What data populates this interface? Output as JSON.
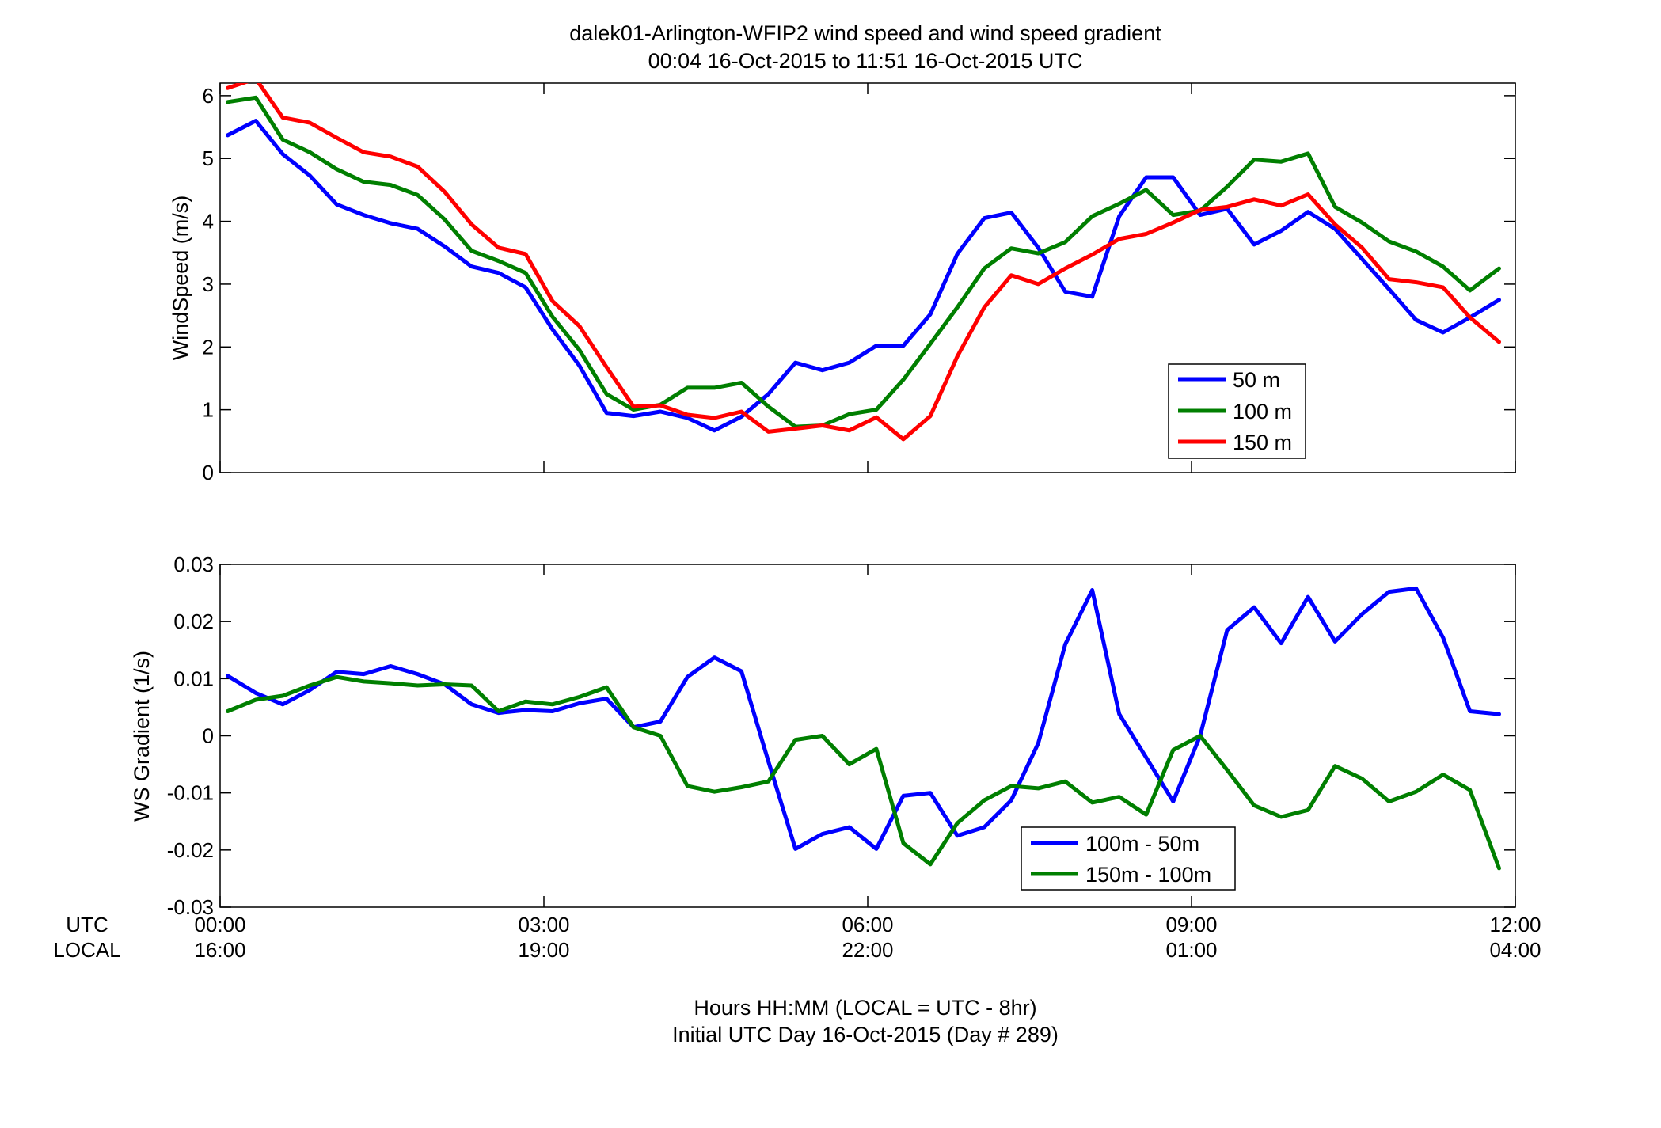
{
  "title": {
    "line1": "dalek01-Arlington-WFIP2  wind speed and wind speed gradient",
    "line2": "00:04 16-Oct-2015 to 11:51 16-Oct-2015  UTC"
  },
  "xaxis": {
    "row_labels": [
      "UTC",
      "LOCAL"
    ],
    "ticks_utc": [
      "00:00",
      "03:00",
      "06:00",
      "09:00",
      "12:00"
    ],
    "ticks_local": [
      "16:00",
      "19:00",
      "22:00",
      "01:00",
      "04:00"
    ],
    "tick_hours": [
      0,
      3,
      6,
      9,
      12
    ],
    "xlabel_line1": "Hours HH:MM  (LOCAL = UTC - 8hr)",
    "xlabel_line2": "Initial UTC Day 16-Oct-2015 (Day # 289)",
    "xlim": [
      0,
      12
    ]
  },
  "chart_data": [
    {
      "type": "line",
      "ylabel": "WindSpeed (m/s)",
      "ylim": [
        0,
        6.2
      ],
      "yticks": [
        0,
        1,
        2,
        3,
        4,
        5,
        6
      ],
      "ytick_labels": [
        "0",
        "1",
        "2",
        "3",
        "4",
        "5",
        "6"
      ],
      "grid": false,
      "legend_position": "lower-right",
      "x": [
        0.07,
        0.33,
        0.58,
        0.83,
        1.08,
        1.33,
        1.58,
        1.83,
        2.08,
        2.33,
        2.58,
        2.83,
        3.08,
        3.33,
        3.58,
        3.83,
        4.08,
        4.33,
        4.58,
        4.83,
        5.08,
        5.33,
        5.58,
        5.83,
        6.08,
        6.33,
        6.58,
        6.83,
        7.08,
        7.33,
        7.58,
        7.83,
        8.08,
        8.33,
        8.58,
        8.83,
        9.08,
        9.33,
        9.58,
        9.83,
        10.08,
        10.33,
        10.58,
        10.83,
        11.08,
        11.33,
        11.58,
        11.85
      ],
      "series": [
        {
          "name": "50 m",
          "color": "#0000ff",
          "values": [
            5.37,
            5.6,
            5.07,
            4.73,
            4.27,
            4.1,
            3.97,
            3.88,
            3.6,
            3.28,
            3.18,
            2.95,
            2.28,
            1.7,
            0.95,
            0.9,
            0.97,
            0.87,
            0.67,
            0.89,
            1.25,
            1.75,
            1.63,
            1.75,
            2.02,
            2.02,
            2.52,
            3.48,
            4.05,
            4.14,
            3.58,
            2.88,
            2.8,
            4.08,
            4.7,
            4.7,
            4.1,
            4.2,
            3.63,
            3.85,
            4.15,
            3.88,
            3.4,
            2.92,
            2.43,
            2.23,
            2.47,
            2.75
          ]
        },
        {
          "name": "100 m",
          "color": "#007f00",
          "values": [
            5.9,
            5.97,
            5.3,
            5.1,
            4.83,
            4.63,
            4.58,
            4.42,
            4.03,
            3.53,
            3.37,
            3.18,
            2.48,
            1.95,
            1.25,
            1.0,
            1.08,
            1.35,
            1.35,
            1.43,
            1.05,
            0.73,
            0.75,
            0.93,
            1.0,
            1.48,
            2.05,
            2.63,
            3.25,
            3.57,
            3.49,
            3.67,
            4.08,
            4.28,
            4.5,
            4.1,
            4.17,
            4.55,
            4.98,
            4.95,
            5.08,
            4.23,
            3.98,
            3.68,
            3.52,
            3.28,
            2.9,
            3.25
          ]
        },
        {
          "name": "150 m",
          "color": "#ff0000",
          "values": [
            6.12,
            6.27,
            5.65,
            5.57,
            5.33,
            5.1,
            5.03,
            4.87,
            4.47,
            3.95,
            3.58,
            3.48,
            2.73,
            2.33,
            1.68,
            1.05,
            1.07,
            0.92,
            0.87,
            0.97,
            0.65,
            0.7,
            0.75,
            0.67,
            0.88,
            0.53,
            0.9,
            1.85,
            2.63,
            3.14,
            3.0,
            3.25,
            3.47,
            3.72,
            3.8,
            3.98,
            4.18,
            4.23,
            4.35,
            4.25,
            4.43,
            3.95,
            3.58,
            3.08,
            3.03,
            2.95,
            2.47,
            2.08
          ]
        }
      ]
    },
    {
      "type": "line",
      "ylabel": "WS Gradient (1/s)",
      "ylim": [
        -0.03,
        0.03
      ],
      "yticks": [
        -0.03,
        -0.02,
        -0.01,
        0,
        0.01,
        0.02,
        0.03
      ],
      "ytick_labels": [
        "-0.03",
        "-0.02",
        "-0.01",
        "0",
        "0.01",
        "0.02",
        "0.03"
      ],
      "grid": false,
      "legend_position": "bottom-center",
      "x": [
        0.07,
        0.33,
        0.58,
        0.83,
        1.08,
        1.33,
        1.58,
        1.83,
        2.08,
        2.33,
        2.58,
        2.83,
        3.08,
        3.33,
        3.58,
        3.83,
        4.08,
        4.33,
        4.58,
        4.83,
        5.08,
        5.33,
        5.58,
        5.83,
        6.08,
        6.33,
        6.58,
        6.83,
        7.08,
        7.33,
        7.58,
        7.83,
        8.08,
        8.33,
        8.58,
        8.83,
        9.08,
        9.33,
        9.58,
        9.83,
        10.08,
        10.33,
        10.58,
        10.83,
        11.08,
        11.33,
        11.58,
        11.85
      ],
      "series": [
        {
          "name": "100m - 50m",
          "color": "#0000ff",
          "values": [
            0.0105,
            0.0075,
            0.0055,
            0.008,
            0.0112,
            0.0108,
            0.0122,
            0.0108,
            0.009,
            0.0055,
            0.004,
            0.0045,
            0.0043,
            0.0057,
            0.0065,
            0.0015,
            0.0025,
            0.0103,
            0.0137,
            0.0113,
            -0.0045,
            -0.0198,
            -0.0172,
            -0.016,
            -0.0198,
            -0.0105,
            -0.01,
            -0.0175,
            -0.016,
            -0.0113,
            -0.0013,
            0.016,
            0.0255,
            0.0038,
            -0.0038,
            -0.0115,
            0.0,
            0.0185,
            0.0225,
            0.0162,
            0.0243,
            0.0165,
            0.0213,
            0.0252,
            0.0258,
            0.0172,
            0.0043,
            0.0038
          ]
        },
        {
          "name": "150m - 100m",
          "color": "#007f00",
          "values": [
            0.0043,
            0.0063,
            0.007,
            0.0088,
            0.0103,
            0.0095,
            0.0092,
            0.0088,
            0.009,
            0.0088,
            0.0043,
            0.006,
            0.0055,
            0.0068,
            0.0085,
            0.0015,
            0.0,
            -0.0088,
            -0.0098,
            -0.009,
            -0.008,
            -0.0007,
            0.0,
            -0.005,
            -0.0023,
            -0.0188,
            -0.0225,
            -0.0153,
            -0.0113,
            -0.0088,
            -0.0092,
            -0.008,
            -0.0117,
            -0.0107,
            -0.0138,
            -0.0025,
            0.0,
            -0.006,
            -0.0122,
            -0.0142,
            -0.013,
            -0.0053,
            -0.0075,
            -0.0115,
            -0.0098,
            -0.0068,
            -0.0095,
            -0.0232
          ]
        }
      ]
    }
  ]
}
